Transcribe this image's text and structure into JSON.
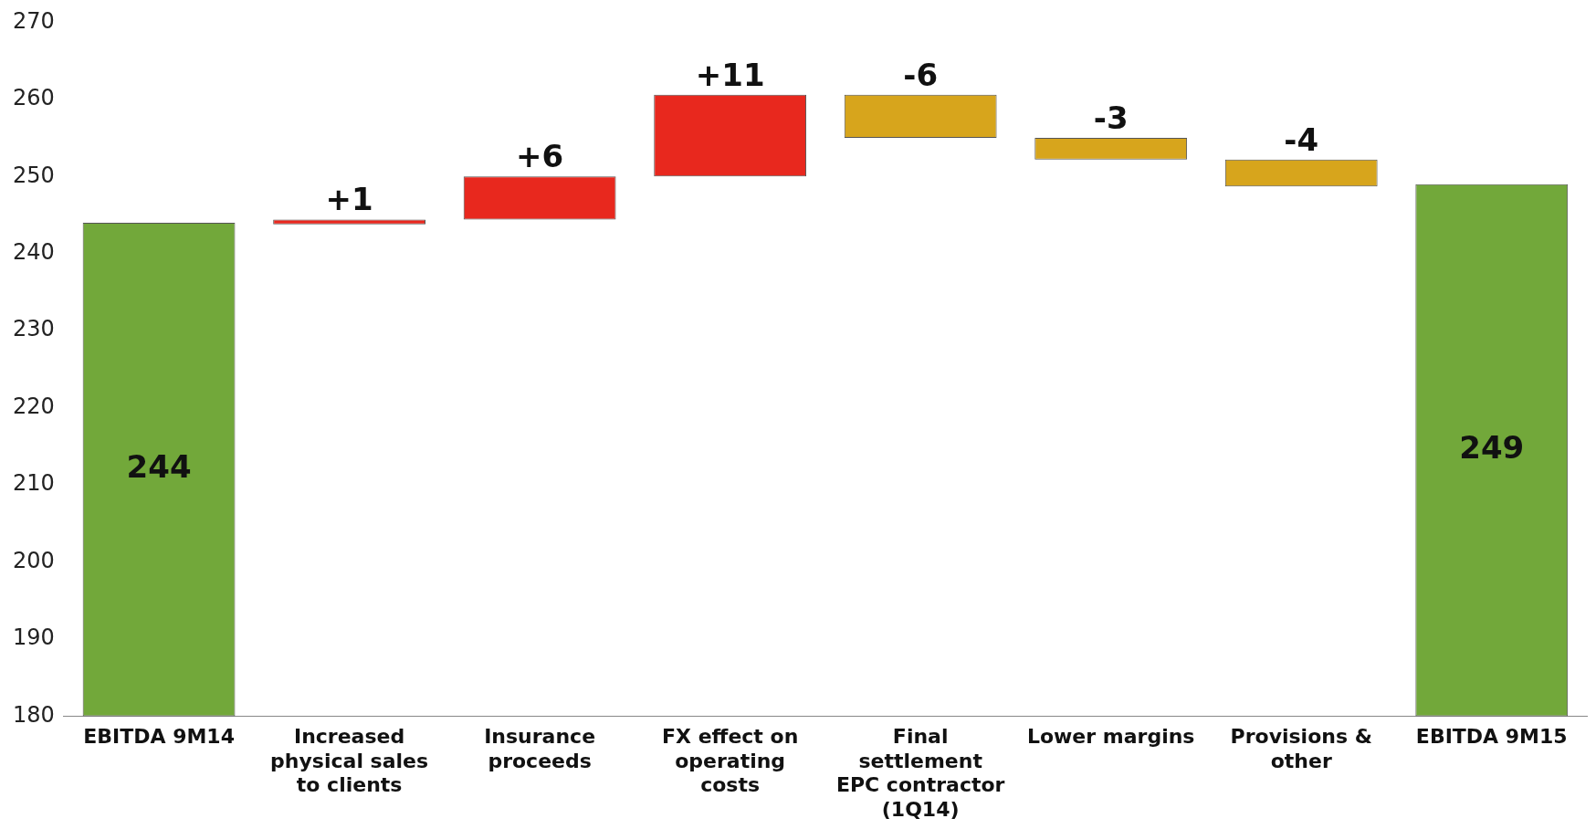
{
  "chart_data": {
    "type": "bar",
    "categories": [
      "EBITDA 9M14",
      "Increased physical sales to clients",
      "Insurance proceeds",
      "FX effect on operating costs",
      "Final settlement EPC contractor (1Q14)",
      "Lower margins",
      "Provisions & other",
      "EBITDA 9M15"
    ],
    "values": [
      244,
      0.6,
      5.6,
      10.6,
      -5.6,
      -2.8,
      -3.5,
      249
    ],
    "base": [
      null,
      243.8,
      244.4,
      250,
      260.6,
      255,
      252.2,
      null
    ],
    "colors": [
      "#72a83a",
      "#e8281e",
      "#e8281e",
      "#e8281e",
      "#d7a51c",
      "#d7a51c",
      "#d7a51c",
      "#72a83a"
    ],
    "value_labels": [
      "244",
      "+1",
      "+6",
      "+11",
      "-6",
      "-3",
      "-4",
      "249"
    ],
    "ylim": [
      180,
      270
    ],
    "yticks": [
      180,
      190,
      200,
      210,
      220,
      230,
      240,
      250,
      260,
      270
    ],
    "grid": false,
    "legend": false
  }
}
